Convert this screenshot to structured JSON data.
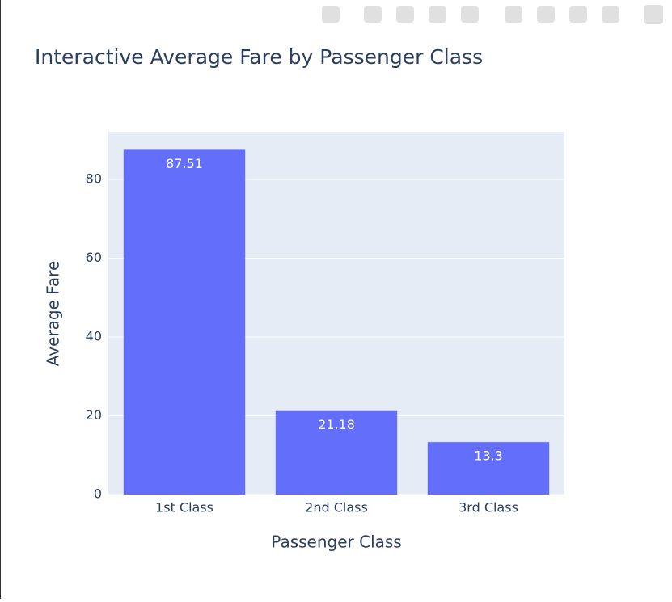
{
  "chart_data": {
    "type": "bar",
    "title": "Interactive Average Fare by Passenger Class",
    "x_label": "Passenger Class",
    "y_label": "Average Fare",
    "categories": [
      "1st Class",
      "2nd Class",
      "3rd Class"
    ],
    "values": [
      87.51,
      21.18,
      13.3
    ],
    "color": "#636efa",
    "ylim": [
      0,
      92.1
    ],
    "yticks": [
      0,
      20,
      40,
      60,
      80
    ],
    "grid": true
  }
}
